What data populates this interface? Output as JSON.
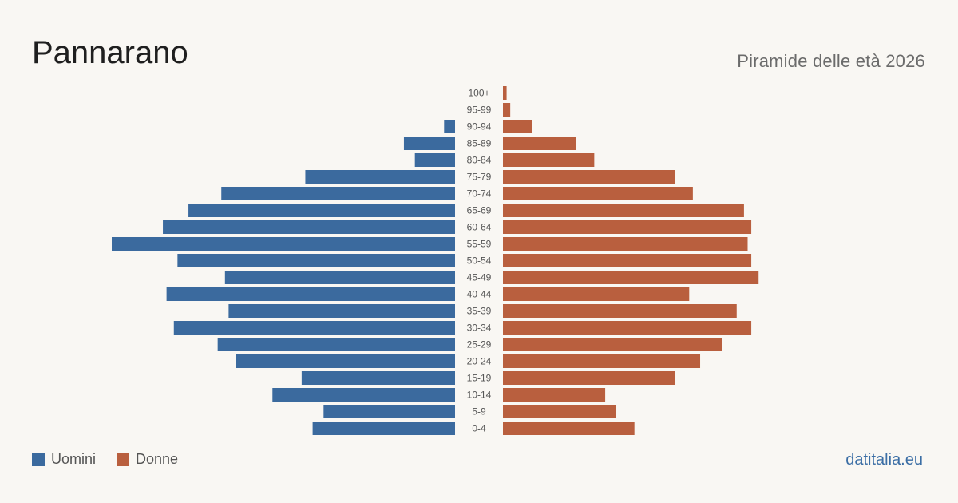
{
  "header": {
    "title": "Pannarano",
    "subtitle": "Piramide delle età 2026"
  },
  "legend": {
    "men_label": "Uomini",
    "women_label": "Donne"
  },
  "footer": {
    "source": "datitalia.eu"
  },
  "colors": {
    "men": "#3b6a9e",
    "women": "#b95f3e",
    "background": "#f9f7f3",
    "tick_label": "#555555"
  },
  "chart_data": {
    "type": "bar",
    "orientation": "horizontal-population-pyramid",
    "categories": [
      "100+",
      "95-99",
      "90-94",
      "85-89",
      "80-84",
      "75-79",
      "70-74",
      "65-69",
      "60-64",
      "55-59",
      "50-54",
      "45-49",
      "40-44",
      "35-39",
      "30-34",
      "25-29",
      "20-24",
      "15-19",
      "10-14",
      "5-9",
      "0-4"
    ],
    "series": [
      {
        "name": "Uomini",
        "values": [
          0,
          0,
          3,
          14,
          11,
          41,
          64,
          73,
          80,
          94,
          76,
          63,
          79,
          62,
          77,
          65,
          60,
          42,
          50,
          36,
          39
        ]
      },
      {
        "name": "Donne",
        "values": [
          1,
          2,
          8,
          20,
          25,
          47,
          52,
          66,
          68,
          67,
          68,
          70,
          51,
          64,
          68,
          60,
          54,
          47,
          28,
          31,
          36
        ]
      }
    ],
    "xmax": 94,
    "legend_position": "bottom-left",
    "grid": false
  }
}
